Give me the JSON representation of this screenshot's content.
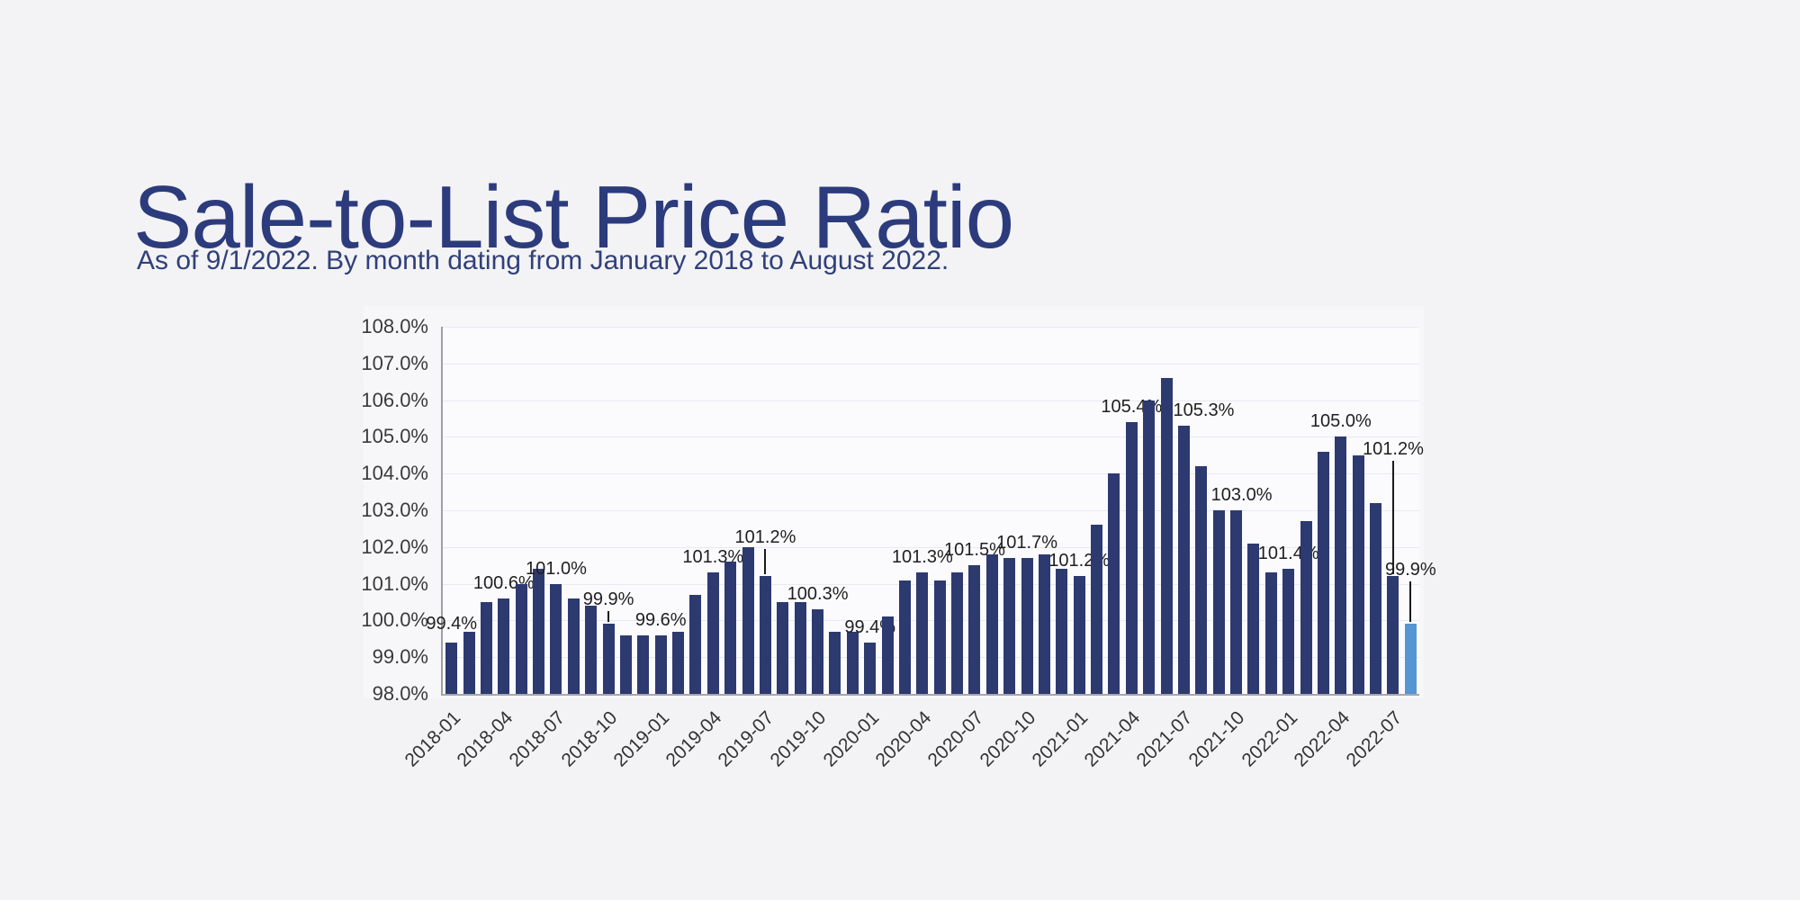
{
  "page": {
    "background": "#f3f3f5"
  },
  "header": {
    "title": "Sale-to-List Price Ratio",
    "subtitle": "As of 9/1/2022. By month dating from January 2018 to August 2022.",
    "title_color": "#2c3b7c",
    "subtitle_color": "#30407a"
  },
  "chart_data": {
    "type": "bar",
    "title": "Sale-to-List Price Ratio",
    "xlabel": "",
    "ylabel": "",
    "ylim": [
      98.0,
      108.0
    ],
    "y_tick_step": 1.0,
    "y_tick_labels": [
      "98.0%",
      "99.0%",
      "100.0%",
      "101.0%",
      "102.0%",
      "103.0%",
      "104.0%",
      "105.0%",
      "106.0%",
      "107.0%",
      "108.0%"
    ],
    "x_tick_labels": [
      "2018-01",
      "2018-04",
      "2018-07",
      "2018-10",
      "2019-01",
      "2019-04",
      "2019-07",
      "2019-10",
      "2020-01",
      "2020-04",
      "2020-07",
      "2020-10",
      "2021-01",
      "2021-04",
      "2021-07",
      "2021-10",
      "2022-01",
      "2022-04",
      "2022-07"
    ],
    "grid": "horizontal",
    "legend": "none",
    "colors": {
      "bar": "#2d3a70",
      "highlight_bar": "#5596d3",
      "grid": "#e8eaf1",
      "axis_line": "#a6a7ab",
      "tick_text": "#3a3a3c",
      "data_label_text": "#1f1f1f",
      "leader_line": "#1a1a1a",
      "plot_bg": "#fbfbfd",
      "panel_bg": "#f7f7f9"
    },
    "points": [
      {
        "month": "2018-01",
        "value": 99.4,
        "label": "99.4%",
        "label_offset": 14
      },
      {
        "month": "2018-02",
        "value": 99.7
      },
      {
        "month": "2018-03",
        "value": 100.5
      },
      {
        "month": "2018-04",
        "value": 100.6,
        "label": "100.6%"
      },
      {
        "month": "2018-05",
        "value": 101.0
      },
      {
        "month": "2018-06",
        "value": 101.4
      },
      {
        "month": "2018-07",
        "value": 101.0,
        "label": "101.0%"
      },
      {
        "month": "2018-08",
        "value": 100.6
      },
      {
        "month": "2018-09",
        "value": 100.4
      },
      {
        "month": "2018-10",
        "value": 99.9,
        "label": "99.9%",
        "leader": true,
        "label_offset": 20
      },
      {
        "month": "2018-11",
        "value": 99.6
      },
      {
        "month": "2018-12",
        "value": 99.6
      },
      {
        "month": "2019-01",
        "value": 99.6,
        "label": "99.6%"
      },
      {
        "month": "2019-02",
        "value": 99.7
      },
      {
        "month": "2019-03",
        "value": 100.7
      },
      {
        "month": "2019-04",
        "value": 101.3,
        "label": "101.3%"
      },
      {
        "month": "2019-05",
        "value": 101.6
      },
      {
        "month": "2019-06",
        "value": 102.0
      },
      {
        "month": "2019-07",
        "value": 101.2,
        "label": "101.2%",
        "leader": true,
        "label_offset": 36
      },
      {
        "month": "2019-08",
        "value": 100.5
      },
      {
        "month": "2019-09",
        "value": 100.5
      },
      {
        "month": "2019-10",
        "value": 100.3,
        "label": "100.3%"
      },
      {
        "month": "2019-11",
        "value": 99.7
      },
      {
        "month": "2019-12",
        "value": 99.7
      },
      {
        "month": "2020-01",
        "value": 99.4,
        "label": "99.4%"
      },
      {
        "month": "2020-02",
        "value": 100.1
      },
      {
        "month": "2020-03",
        "value": 101.1
      },
      {
        "month": "2020-04",
        "value": 101.3,
        "label": "101.3%"
      },
      {
        "month": "2020-05",
        "value": 101.1
      },
      {
        "month": "2020-06",
        "value": 101.3
      },
      {
        "month": "2020-07",
        "value": 101.5,
        "label": "101.5%"
      },
      {
        "month": "2020-08",
        "value": 101.8
      },
      {
        "month": "2020-09",
        "value": 101.7
      },
      {
        "month": "2020-10",
        "value": 101.7,
        "label": "101.7%"
      },
      {
        "month": "2020-11",
        "value": 101.8
      },
      {
        "month": "2020-12",
        "value": 101.4
      },
      {
        "month": "2021-01",
        "value": 101.2,
        "label": "101.2%"
      },
      {
        "month": "2021-02",
        "value": 102.6
      },
      {
        "month": "2021-03",
        "value": 104.0
      },
      {
        "month": "2021-04",
        "value": 105.4,
        "label": "105.4%"
      },
      {
        "month": "2021-05",
        "value": 106.0
      },
      {
        "month": "2021-06",
        "value": 106.6
      },
      {
        "month": "2021-07",
        "value": 105.3,
        "label": "105.3%",
        "label_dx": 22
      },
      {
        "month": "2021-08",
        "value": 104.2
      },
      {
        "month": "2021-09",
        "value": 103.0
      },
      {
        "month": "2021-10",
        "value": 103.0,
        "label": "103.0%",
        "label_dx": 6
      },
      {
        "month": "2021-11",
        "value": 102.1
      },
      {
        "month": "2021-12",
        "value": 101.3
      },
      {
        "month": "2022-01",
        "value": 101.4,
        "label": "101.4%"
      },
      {
        "month": "2022-02",
        "value": 102.7
      },
      {
        "month": "2022-03",
        "value": 104.6
      },
      {
        "month": "2022-04",
        "value": 105.0,
        "label": "105.0%"
      },
      {
        "month": "2022-05",
        "value": 104.5
      },
      {
        "month": "2022-06",
        "value": 103.2
      },
      {
        "month": "2022-07",
        "value": 101.2,
        "label": "101.2%",
        "leader": true,
        "label_offset": 134
      },
      {
        "month": "2022-08",
        "value": 99.9,
        "label": "99.9%",
        "leader": true,
        "label_offset": 53,
        "highlight": true
      }
    ]
  }
}
